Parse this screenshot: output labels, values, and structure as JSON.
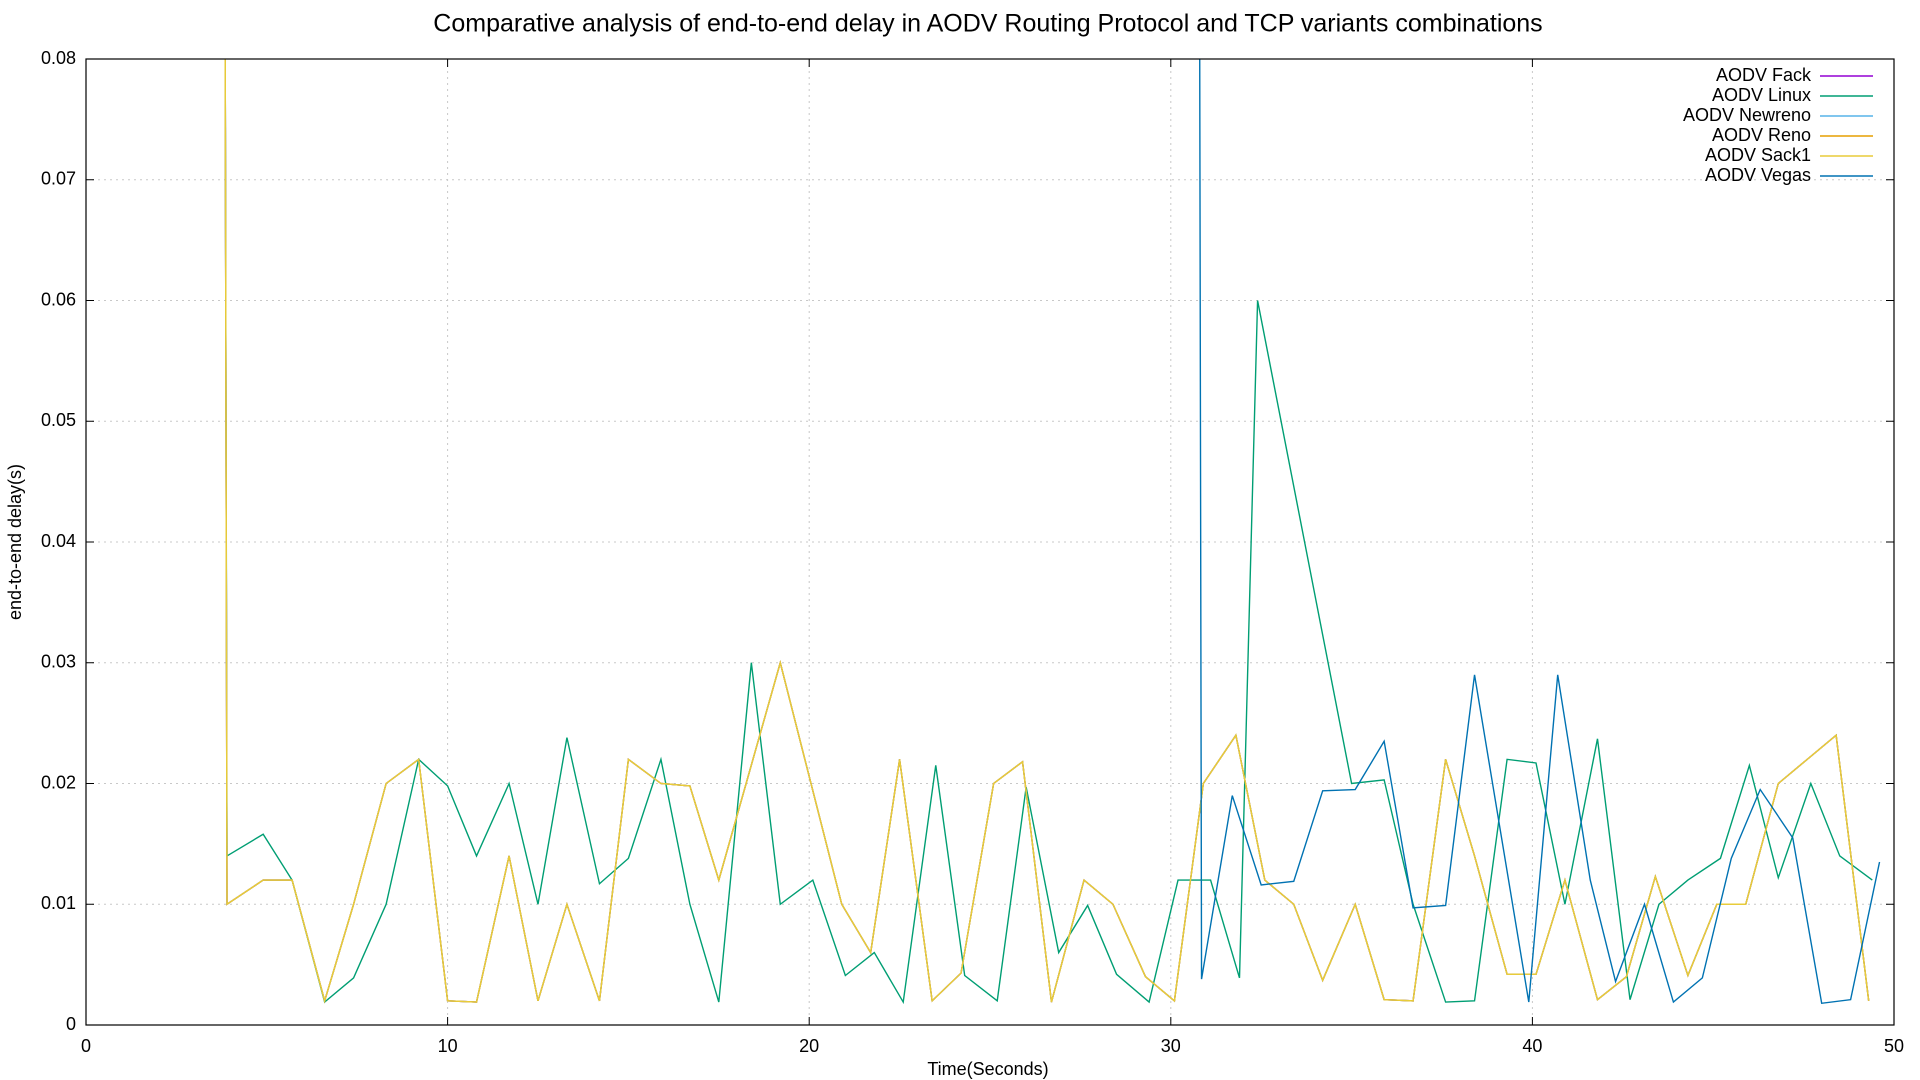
{
  "chart_data": {
    "type": "line",
    "title": "Comparative analysis of end-to-end delay in AODV Routing Protocol and TCP variants combinations",
    "x_label": "Time(Seconds)",
    "y_label": "end-to-end delay(s)",
    "xlim": [
      0,
      50
    ],
    "xticks": [
      0,
      10,
      20,
      30,
      40,
      50
    ],
    "ylim": [
      0,
      0.08
    ],
    "yticks": [
      0,
      0.01,
      0.02,
      0.03,
      0.04,
      0.05,
      0.06,
      0.07,
      0.08
    ],
    "grid": true,
    "legend": "top-right",
    "series": [
      {
        "name": "AODV Fack",
        "color": "#9400d3",
        "x": [
          3.85,
          3.9,
          4.9,
          5.7,
          6.6,
          7.4,
          8.3,
          9.2,
          10.0,
          10.8,
          11.7,
          12.5,
          13.3,
          14.2,
          15.0,
          15.9,
          16.7,
          17.5,
          19.2,
          20.9,
          21.7,
          22.5,
          23.4,
          24.2,
          25.1,
          25.9,
          26.7,
          27.6,
          28.4,
          29.3,
          30.1,
          30.9,
          31.8,
          32.6,
          33.4,
          34.2,
          35.1,
          35.9,
          36.7,
          37.6,
          38.4,
          39.3,
          40.1,
          40.9,
          41.8,
          42.6,
          43.4,
          44.3,
          45.1,
          45.9,
          46.8,
          47.6,
          48.4,
          49.3
        ],
        "values": [
          0.08,
          0.01,
          0.012,
          0.012,
          0.002,
          0.01,
          0.02,
          0.022,
          0.002,
          0.0019,
          0.014,
          0.002,
          0.01,
          0.002,
          0.022,
          0.02,
          0.0198,
          0.012,
          0.03,
          0.01,
          0.006,
          0.022,
          0.002,
          0.0043,
          0.02,
          0.0218,
          0.0019,
          0.012,
          0.01,
          0.004,
          0.002,
          0.02,
          0.024,
          0.012,
          0.01,
          0.0037,
          0.01,
          0.0021,
          0.002,
          0.022,
          0.014,
          0.0042,
          0.0042,
          0.012,
          0.0021,
          0.004,
          0.0123,
          0.0041,
          0.01,
          0.01,
          0.02,
          0.022,
          0.024,
          0.002
        ]
      },
      {
        "name": "AODV Linux",
        "color": "#009e73",
        "x": [
          3.85,
          3.9,
          4.9,
          5.7,
          6.6,
          7.4,
          8.3,
          9.2,
          10.0,
          10.8,
          11.7,
          12.5,
          13.3,
          14.2,
          15.0,
          15.9,
          16.7,
          17.5,
          18.4,
          19.2,
          20.1,
          21.0,
          21.8,
          22.6,
          23.5,
          24.3,
          25.2,
          26.0,
          26.9,
          27.7,
          28.5,
          29.4,
          30.2,
          31.1,
          31.9,
          32.4,
          35.0,
          35.9,
          36.7,
          37.6,
          38.4,
          39.3,
          40.1,
          40.9,
          41.8,
          42.7,
          43.5,
          44.3,
          45.2,
          46.0,
          46.8,
          47.7,
          48.5,
          49.4
        ],
        "values": [
          0.08,
          0.014,
          0.0158,
          0.012,
          0.0019,
          0.0039,
          0.01,
          0.022,
          0.0198,
          0.014,
          0.02,
          0.01,
          0.0238,
          0.0117,
          0.0138,
          0.022,
          0.01,
          0.0019,
          0.03,
          0.01,
          0.012,
          0.0041,
          0.006,
          0.0019,
          0.0215,
          0.0041,
          0.002,
          0.0197,
          0.006,
          0.0099,
          0.0042,
          0.0019,
          0.012,
          0.012,
          0.0039,
          0.06,
          0.02,
          0.0203,
          0.01,
          0.0019,
          0.002,
          0.022,
          0.0217,
          0.01,
          0.0237,
          0.0021,
          0.01,
          0.012,
          0.0138,
          0.0215,
          0.0122,
          0.02,
          0.014,
          0.012
        ]
      },
      {
        "name": "AODV Newreno",
        "color": "#56b4e9",
        "x": [
          3.85,
          3.9,
          4.9,
          5.7,
          6.6,
          7.4,
          8.3,
          9.2,
          10.0,
          10.8,
          11.7,
          12.5,
          13.3,
          14.2,
          15.0,
          15.9,
          16.7,
          17.5,
          19.2,
          20.9,
          21.7,
          22.5,
          23.4,
          24.2,
          25.1,
          25.9,
          26.7,
          27.6,
          28.4,
          29.3,
          30.1,
          30.9,
          31.8,
          32.6,
          33.4,
          34.2,
          35.1,
          35.9,
          36.7,
          37.6,
          38.4,
          39.3,
          40.1,
          40.9,
          41.8,
          42.6,
          43.4,
          44.3,
          45.1,
          45.9,
          46.8,
          47.6,
          48.4,
          49.3
        ],
        "values": [
          0.08,
          0.01,
          0.012,
          0.012,
          0.002,
          0.01,
          0.02,
          0.022,
          0.002,
          0.0019,
          0.014,
          0.002,
          0.01,
          0.002,
          0.022,
          0.02,
          0.0198,
          0.012,
          0.03,
          0.01,
          0.006,
          0.022,
          0.002,
          0.0043,
          0.02,
          0.0218,
          0.0019,
          0.012,
          0.01,
          0.004,
          0.002,
          0.02,
          0.024,
          0.012,
          0.01,
          0.0037,
          0.01,
          0.0021,
          0.002,
          0.022,
          0.014,
          0.0042,
          0.0042,
          0.012,
          0.0021,
          0.004,
          0.0123,
          0.0041,
          0.01,
          0.01,
          0.02,
          0.022,
          0.024,
          0.002
        ]
      },
      {
        "name": "AODV Reno",
        "color": "#e69f00",
        "x": [
          3.85,
          3.9,
          4.9,
          5.7,
          6.6,
          7.4,
          8.3,
          9.2,
          10.0,
          10.8,
          11.7,
          12.5,
          13.3,
          14.2,
          15.0,
          15.9,
          16.7,
          17.5,
          19.2,
          20.9,
          21.7,
          22.5,
          23.4,
          24.2,
          25.1,
          25.9,
          26.7,
          27.6,
          28.4,
          29.3,
          30.1,
          30.9,
          31.8,
          32.6,
          33.4,
          34.2,
          35.1,
          35.9,
          36.7,
          37.6,
          38.4,
          39.3,
          40.1,
          40.9,
          41.8,
          42.6,
          43.4,
          44.3,
          45.1,
          45.9,
          46.8,
          47.6,
          48.4,
          49.3
        ],
        "values": [
          0.08,
          0.01,
          0.012,
          0.012,
          0.002,
          0.01,
          0.02,
          0.022,
          0.002,
          0.0019,
          0.014,
          0.002,
          0.01,
          0.002,
          0.022,
          0.02,
          0.0198,
          0.012,
          0.03,
          0.01,
          0.006,
          0.022,
          0.002,
          0.0043,
          0.02,
          0.0218,
          0.0019,
          0.012,
          0.01,
          0.004,
          0.002,
          0.02,
          0.024,
          0.012,
          0.01,
          0.0037,
          0.01,
          0.0021,
          0.002,
          0.022,
          0.014,
          0.0042,
          0.0042,
          0.012,
          0.0021,
          0.004,
          0.0123,
          0.0041,
          0.01,
          0.01,
          0.02,
          0.022,
          0.024,
          0.002
        ]
      },
      {
        "name": "AODV Sack1",
        "color": "#e8cc3a",
        "x": [
          3.85,
          3.9,
          4.9,
          5.7,
          6.6,
          7.4,
          8.3,
          9.2,
          10.0,
          10.8,
          11.7,
          12.5,
          13.3,
          14.2,
          15.0,
          15.9,
          16.7,
          17.5,
          19.2,
          20.9,
          21.7,
          22.5,
          23.4,
          24.2,
          25.1,
          25.9,
          26.7,
          27.6,
          28.4,
          29.3,
          30.1,
          30.9,
          31.8,
          32.6,
          33.4,
          34.2,
          35.1,
          35.9,
          36.7,
          37.6,
          38.4,
          39.3,
          40.1,
          40.9,
          41.8,
          42.6,
          43.4,
          44.3,
          45.1,
          45.9,
          46.8,
          47.6,
          48.4,
          49.3
        ],
        "values": [
          0.08,
          0.01,
          0.012,
          0.012,
          0.002,
          0.01,
          0.02,
          0.022,
          0.002,
          0.0019,
          0.014,
          0.002,
          0.01,
          0.002,
          0.022,
          0.02,
          0.0198,
          0.012,
          0.03,
          0.01,
          0.006,
          0.022,
          0.002,
          0.0043,
          0.02,
          0.0218,
          0.0019,
          0.012,
          0.01,
          0.004,
          0.002,
          0.02,
          0.024,
          0.012,
          0.01,
          0.0037,
          0.01,
          0.0021,
          0.002,
          0.022,
          0.014,
          0.0042,
          0.0042,
          0.012,
          0.0021,
          0.004,
          0.0123,
          0.0041,
          0.01,
          0.01,
          0.02,
          0.022,
          0.024,
          0.002
        ]
      },
      {
        "name": "AODV Vegas",
        "color": "#0072b2",
        "x": [
          30.8,
          30.85,
          31.7,
          32.5,
          33.4,
          34.2,
          35.1,
          35.9,
          36.7,
          37.6,
          38.4,
          39.9,
          40.7,
          41.6,
          42.3,
          43.1,
          43.9,
          44.7,
          45.5,
          46.3,
          47.2,
          48.0,
          48.8,
          49.6
        ],
        "values": [
          0.08,
          0.0038,
          0.019,
          0.0116,
          0.0119,
          0.0194,
          0.0195,
          0.0235,
          0.0097,
          0.0099,
          0.029,
          0.0019,
          0.029,
          0.012,
          0.0036,
          0.01,
          0.0019,
          0.0039,
          0.0138,
          0.0195,
          0.0155,
          0.0018,
          0.0021,
          0.0135
        ]
      }
    ]
  }
}
